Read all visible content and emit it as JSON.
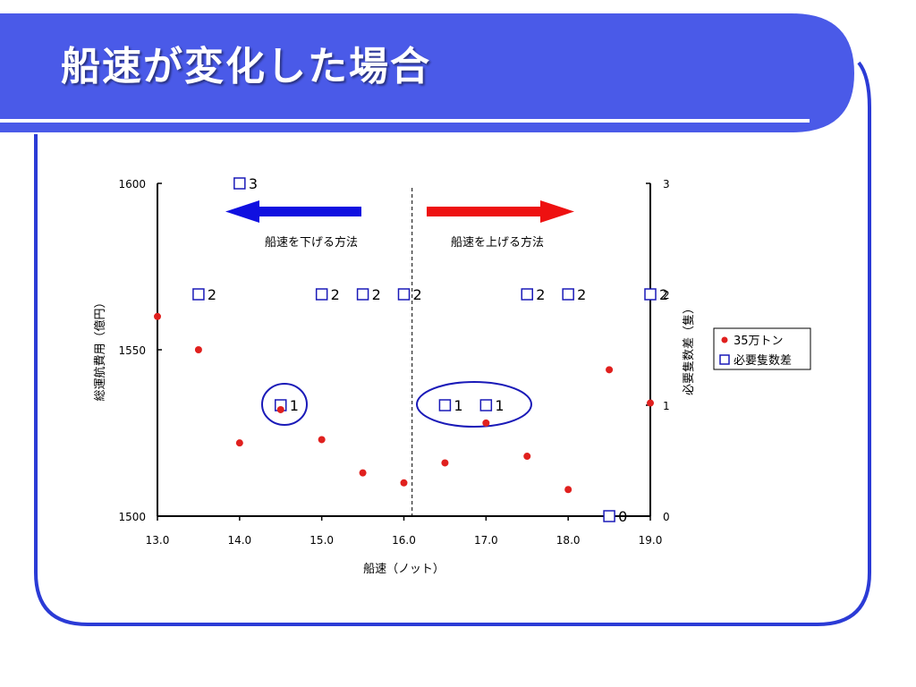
{
  "slide": {
    "title": "船速が変化した場合",
    "colors": {
      "title_bar": "#4a5ae8",
      "frame": "#2b3bd6",
      "title_text": "#ffffff"
    }
  },
  "chart_data": {
    "type": "scatter",
    "xlabel": "船速（ノット）",
    "ylabel_left": "総運航費用（億円）",
    "ylabel_right": "必要隻数差（隻）",
    "xlim": [
      13.0,
      19.0
    ],
    "ylim_left": [
      1500,
      1600
    ],
    "ylim_right": [
      0,
      3
    ],
    "x_ticks": [
      "13.0",
      "14.0",
      "15.0",
      "16.0",
      "17.0",
      "18.0",
      "19.0"
    ],
    "y_left_ticks": [
      "1500",
      "1550",
      "1600"
    ],
    "y_right_ticks": [
      "0",
      "1",
      "2",
      "3"
    ],
    "grid": false,
    "legend_position": "right",
    "series": [
      {
        "name": "35万トン",
        "marker": "dot",
        "color": "#e0201e",
        "axis": "left",
        "points": [
          [
            13.0,
            1560
          ],
          [
            13.5,
            1550
          ],
          [
            14.0,
            1522
          ],
          [
            14.5,
            1532
          ],
          [
            15.0,
            1523
          ],
          [
            15.5,
            1513
          ],
          [
            16.0,
            1510
          ],
          [
            16.5,
            1516
          ],
          [
            17.0,
            1528
          ],
          [
            17.5,
            1518
          ],
          [
            18.0,
            1508
          ],
          [
            18.5,
            1544
          ],
          [
            19.0,
            1534
          ]
        ]
      },
      {
        "name": "必要隻数差",
        "marker": "square",
        "color": "#1a1ab8",
        "axis": "right",
        "points": [
          [
            14.0,
            3
          ],
          [
            13.5,
            2
          ],
          [
            15.0,
            2
          ],
          [
            15.5,
            2
          ],
          [
            16.0,
            2
          ],
          [
            17.5,
            2
          ],
          [
            18.0,
            2
          ],
          [
            19.0,
            2
          ],
          [
            14.5,
            1
          ],
          [
            16.5,
            1
          ],
          [
            17.0,
            1
          ],
          [
            18.5,
            0
          ]
        ],
        "labels": [
          "3",
          "2",
          "2",
          "2",
          "2",
          "2",
          "2",
          "2",
          "1",
          "1",
          "1",
          "0"
        ]
      }
    ],
    "reference_line": {
      "x": 16.1,
      "style": "dashed"
    },
    "annotations": {
      "left_text": "船速を下げる方法",
      "right_text": "船速を上げる方法",
      "left_arrow_color": "#1010e0",
      "right_arrow_color": "#ee1111",
      "circle_color": "#1a1ab8"
    }
  }
}
